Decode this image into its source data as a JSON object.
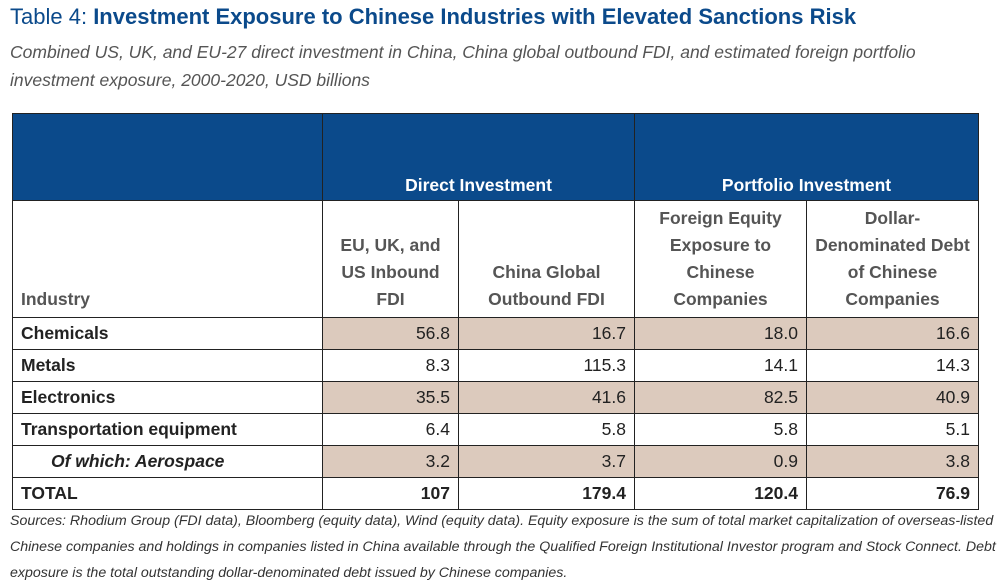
{
  "header": {
    "label": "Table 4:",
    "title": "Investment Exposure to Chinese Industries with Elevated Sanctions Risk",
    "subtitle": "Combined US, UK, and EU-27 direct investment in China, China global outbound FDI, and estimated foreign portfolio investment exposure, 2000-2020, USD billions"
  },
  "table": {
    "groups": [
      "Direct Investment",
      "Portfolio Investment"
    ],
    "columns": [
      "Industry",
      "EU, UK, and US Inbound FDI",
      "China Global Outbound FDI",
      "Foreign Equity Exposure to Chinese Companies",
      "Dollar-Denominated Debt of Chinese Companies"
    ],
    "rows": [
      [
        "Chemicals",
        "56.8",
        "16.7",
        "18.0",
        "16.6"
      ],
      [
        "Metals",
        "8.3",
        "115.3",
        "14.1",
        "14.3"
      ],
      [
        "Electronics",
        "35.5",
        "41.6",
        "82.5",
        "40.9"
      ],
      [
        "Transportation equipment",
        "6.4",
        "5.8",
        "5.8",
        "5.1"
      ],
      [
        "Of which: Aerospace",
        "3.2",
        "3.7",
        "0.9",
        "3.8"
      ],
      [
        "TOTAL",
        "107",
        "179.4",
        "120.4",
        "76.9"
      ]
    ]
  },
  "footnote": "Sources: Rhodium Group (FDI data), Bloomberg (equity data), Wind (equity data). Equity exposure is the sum of total market capitalization of overseas-listed Chinese companies and holdings in companies listed in China available through the Qualified Foreign Institutional Investor program and Stock Connect. Debt exposure is the total outstanding dollar-denominated debt issued by Chinese companies."
}
